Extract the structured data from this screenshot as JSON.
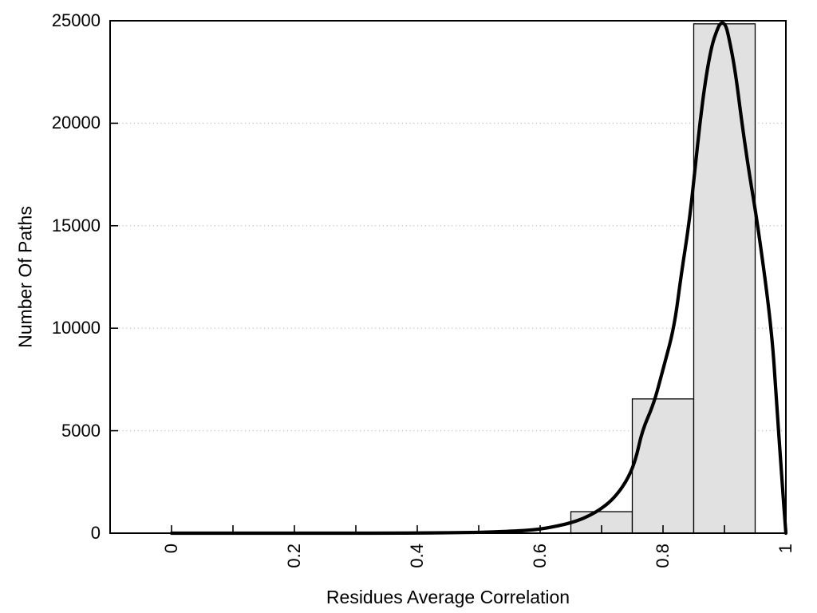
{
  "figure": {
    "background": "#ffffff"
  },
  "chart_data": {
    "type": "bar",
    "subtype": "histogram-with-density-curve",
    "title": "",
    "xlabel": "Residues Average Correlation",
    "ylabel": "Number Of Paths",
    "xlim": [
      -0.1,
      1.0
    ],
    "ylim": [
      0,
      25000
    ],
    "x_major_ticks": [
      0,
      0.2,
      0.4,
      0.6,
      0.8,
      1
    ],
    "x_tick_labels": [
      "0",
      "0.2",
      "0.4",
      "0.6",
      "0.8",
      "1"
    ],
    "x_minor_ticks": [
      0.1,
      0.3,
      0.5,
      0.7,
      0.9
    ],
    "y_ticks": [
      0,
      5000,
      10000,
      15000,
      20000,
      25000
    ],
    "y_tick_labels": [
      "0",
      "5000",
      "10000",
      "15000",
      "20000",
      "25000"
    ],
    "grid": {
      "style": "horizontal-dotted",
      "horizontal_dotted_at": [
        5000,
        10000,
        15000,
        20000
      ]
    },
    "legend": null,
    "bars": [
      {
        "x0": 0.65,
        "x1": 0.75,
        "count": 1050
      },
      {
        "x0": 0.75,
        "x1": 0.85,
        "count": 6550
      },
      {
        "x0": 0.85,
        "x1": 0.95,
        "count": 24850
      }
    ],
    "density_curve": {
      "name": "density-fit",
      "points": [
        [
          0,
          0
        ],
        [
          0.05,
          0
        ],
        [
          0.1,
          0
        ],
        [
          0.15,
          0
        ],
        [
          0.2,
          0
        ],
        [
          0.25,
          0
        ],
        [
          0.3,
          0
        ],
        [
          0.35,
          0
        ],
        [
          0.4,
          10
        ],
        [
          0.45,
          20
        ],
        [
          0.5,
          40
        ],
        [
          0.55,
          90
        ],
        [
          0.58,
          140
        ],
        [
          0.6,
          200
        ],
        [
          0.62,
          300
        ],
        [
          0.64,
          430
        ],
        [
          0.66,
          600
        ],
        [
          0.68,
          850
        ],
        [
          0.7,
          1200
        ],
        [
          0.72,
          1700
        ],
        [
          0.74,
          2500
        ],
        [
          0.755,
          3500
        ],
        [
          0.766,
          5000
        ],
        [
          0.785,
          6300
        ],
        [
          0.8,
          8000
        ],
        [
          0.818,
          10000
        ],
        [
          0.83,
          12700
        ],
        [
          0.842,
          15000
        ],
        [
          0.852,
          17700
        ],
        [
          0.86,
          20000
        ],
        [
          0.87,
          22300
        ],
        [
          0.88,
          23900
        ],
        [
          0.89,
          24700
        ],
        [
          0.893,
          24850
        ],
        [
          0.897,
          24900
        ],
        [
          0.901,
          24820
        ],
        [
          0.905,
          24500
        ],
        [
          0.917,
          22700
        ],
        [
          0.9285,
          20000
        ],
        [
          0.94,
          17600
        ],
        [
          0.955,
          14900
        ],
        [
          0.9766,
          10000
        ],
        [
          0.985,
          6400
        ],
        [
          0.993,
          2800
        ],
        [
          1.0,
          0
        ]
      ]
    },
    "colors": {
      "bar_fill": "#e1e1e1",
      "bar_border": "#000000",
      "curve": "#000000",
      "grid_dots": "#c4c4c4",
      "axis": "#000000",
      "text": "#000000",
      "background": "#ffffff"
    }
  }
}
